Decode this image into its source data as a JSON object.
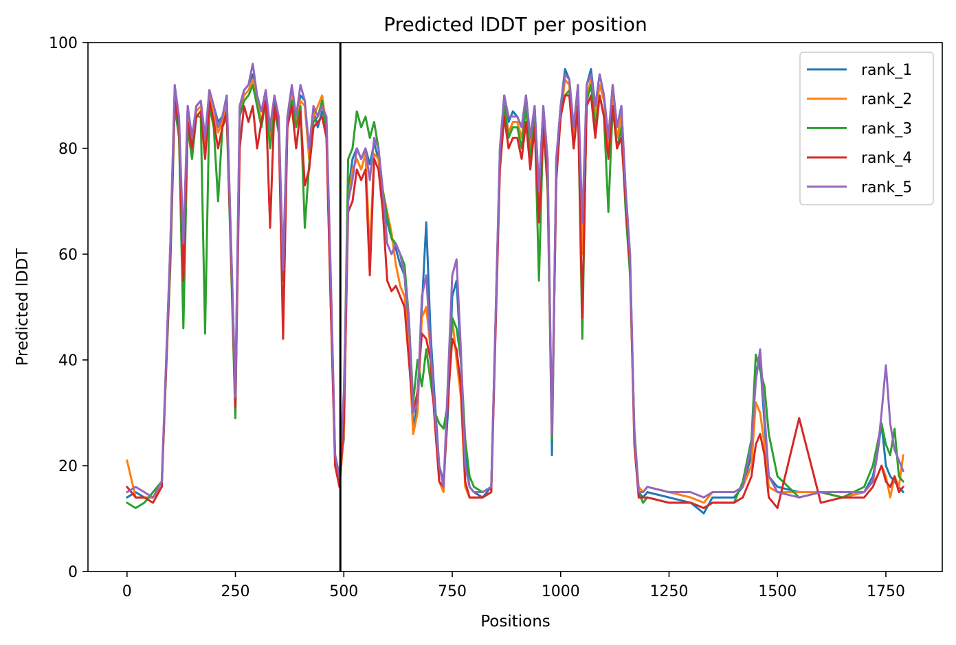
{
  "chart_data": {
    "type": "line",
    "title": "Predicted lDDT per position",
    "xlabel": "Positions",
    "ylabel": "Predicted lDDT",
    "xlim": [
      -90,
      1880
    ],
    "ylim": [
      0,
      100
    ],
    "xticks": [
      0,
      250,
      500,
      750,
      1000,
      1250,
      1500,
      1750
    ],
    "yticks": [
      0,
      20,
      40,
      60,
      80,
      100
    ],
    "xtick_labels": [
      "0",
      "250",
      "500",
      "750",
      "1000",
      "1250",
      "1500",
      "1750"
    ],
    "ytick_labels": [
      "0",
      "20",
      "40",
      "60",
      "80",
      "100"
    ],
    "vertical_line_x": 492,
    "legend_position": "top-right",
    "grid": false,
    "x": [
      0,
      20,
      40,
      60,
      80,
      100,
      110,
      120,
      130,
      140,
      150,
      160,
      170,
      180,
      190,
      200,
      210,
      220,
      230,
      240,
      250,
      260,
      270,
      280,
      290,
      300,
      310,
      320,
      330,
      340,
      350,
      360,
      370,
      380,
      390,
      400,
      410,
      420,
      430,
      440,
      450,
      460,
      470,
      480,
      490,
      500,
      510,
      520,
      530,
      540,
      550,
      560,
      570,
      580,
      590,
      600,
      610,
      620,
      630,
      640,
      650,
      660,
      670,
      680,
      690,
      700,
      710,
      720,
      730,
      740,
      750,
      760,
      770,
      780,
      790,
      800,
      820,
      840,
      860,
      870,
      880,
      890,
      900,
      910,
      920,
      930,
      940,
      950,
      960,
      970,
      980,
      990,
      1000,
      1010,
      1020,
      1030,
      1040,
      1050,
      1060,
      1070,
      1080,
      1090,
      1100,
      1110,
      1120,
      1130,
      1140,
      1150,
      1160,
      1170,
      1180,
      1190,
      1200,
      1250,
      1300,
      1330,
      1350,
      1400,
      1420,
      1440,
      1450,
      1460,
      1470,
      1480,
      1500,
      1550,
      1600,
      1650,
      1700,
      1720,
      1730,
      1740,
      1750,
      1760,
      1770,
      1780,
      1790
    ],
    "series": [
      {
        "name": "rank_1",
        "color": "#1f77b4",
        "values": [
          14,
          15,
          14,
          14,
          16,
          62,
          91,
          85,
          60,
          88,
          82,
          88,
          89,
          82,
          91,
          88,
          85,
          86,
          90,
          62,
          34,
          88,
          91,
          92,
          94,
          90,
          87,
          91,
          83,
          89,
          85,
          58,
          86,
          91,
          86,
          90,
          89,
          79,
          87,
          84,
          87,
          85,
          55,
          22,
          18,
          25,
          72,
          78,
          80,
          78,
          80,
          77,
          81,
          78,
          70,
          66,
          63,
          61,
          58,
          56,
          45,
          27,
          32,
          50,
          66,
          45,
          32,
          20,
          17,
          30,
          52,
          55,
          40,
          22,
          16,
          15,
          14,
          16,
          80,
          90,
          85,
          87,
          86,
          84,
          90,
          82,
          88,
          72,
          88,
          78,
          22,
          78,
          88,
          95,
          93,
          84,
          92,
          62,
          92,
          95,
          88,
          94,
          90,
          82,
          92,
          84,
          88,
          72,
          60,
          26,
          15,
          14,
          15,
          14,
          13,
          11,
          14,
          14,
          16,
          22,
          38,
          40,
          28,
          18,
          16,
          15,
          15,
          14,
          15,
          18,
          22,
          28,
          20,
          18,
          17,
          16,
          15
        ]
      },
      {
        "name": "rank_2",
        "color": "#ff7f0e",
        "values": [
          21,
          14,
          14,
          14,
          16,
          60,
          90,
          84,
          58,
          86,
          80,
          87,
          88,
          80,
          90,
          86,
          83,
          85,
          88,
          60,
          32,
          87,
          90,
          91,
          93,
          89,
          85,
          90,
          81,
          88,
          84,
          56,
          85,
          90,
          85,
          89,
          88,
          78,
          86,
          88,
          90,
          84,
          52,
          20,
          16,
          26,
          70,
          76,
          78,
          76,
          79,
          60,
          79,
          78,
          72,
          68,
          64,
          58,
          54,
          52,
          42,
          26,
          30,
          48,
          50,
          42,
          28,
          17,
          15,
          35,
          48,
          40,
          33,
          16,
          14,
          14,
          14,
          15,
          78,
          88,
          83,
          85,
          85,
          82,
          88,
          80,
          87,
          70,
          86,
          76,
          25,
          76,
          86,
          93,
          92,
          82,
          90,
          60,
          90,
          93,
          86,
          92,
          89,
          80,
          90,
          82,
          86,
          70,
          58,
          25,
          16,
          15,
          16,
          15,
          14,
          13,
          15,
          15,
          16,
          20,
          32,
          30,
          24,
          16,
          15,
          15,
          15,
          14,
          15,
          17,
          18,
          20,
          18,
          14,
          18,
          16,
          22
        ]
      },
      {
        "name": "rank_3",
        "color": "#2ca02c",
        "values": [
          13,
          12,
          13,
          15,
          17,
          58,
          88,
          82,
          46,
          84,
          78,
          86,
          86,
          45,
          88,
          84,
          70,
          84,
          86,
          58,
          29,
          86,
          89,
          90,
          92,
          88,
          84,
          89,
          80,
          87,
          83,
          55,
          84,
          89,
          84,
          88,
          65,
          77,
          85,
          86,
          89,
          83,
          50,
          22,
          18,
          30,
          78,
          80,
          87,
          84,
          86,
          82,
          85,
          80,
          72,
          67,
          63,
          62,
          60,
          58,
          48,
          32,
          40,
          35,
          42,
          36,
          30,
          28,
          27,
          32,
          48,
          46,
          40,
          25,
          18,
          16,
          15,
          16,
          78,
          88,
          82,
          84,
          84,
          80,
          88,
          78,
          86,
          55,
          85,
          72,
          25,
          74,
          88,
          90,
          91,
          80,
          88,
          44,
          89,
          92,
          84,
          90,
          86,
          68,
          88,
          80,
          84,
          68,
          56,
          27,
          15,
          13,
          14,
          13,
          13,
          12,
          13,
          13,
          17,
          25,
          41,
          38,
          35,
          26,
          18,
          14,
          15,
          14,
          16,
          20,
          24,
          28,
          24,
          22,
          27,
          18,
          17
        ]
      },
      {
        "name": "rank_4",
        "color": "#d62728",
        "values": [
          16,
          14,
          14,
          13,
          16,
          60,
          89,
          84,
          55,
          85,
          80,
          86,
          87,
          78,
          89,
          85,
          80,
          84,
          87,
          60,
          31,
          80,
          88,
          85,
          88,
          80,
          85,
          89,
          65,
          88,
          84,
          44,
          84,
          88,
          80,
          87,
          73,
          76,
          84,
          85,
          86,
          82,
          50,
          20,
          16,
          28,
          68,
          70,
          76,
          74,
          76,
          56,
          78,
          76,
          68,
          55,
          53,
          54,
          52,
          50,
          40,
          30,
          34,
          45,
          44,
          40,
          28,
          17,
          16,
          32,
          44,
          42,
          35,
          17,
          14,
          14,
          14,
          15,
          76,
          86,
          80,
          82,
          82,
          78,
          85,
          76,
          84,
          66,
          84,
          74,
          26,
          74,
          86,
          90,
          90,
          80,
          88,
          48,
          88,
          90,
          82,
          90,
          86,
          78,
          88,
          80,
          82,
          70,
          58,
          24,
          14,
          14,
          14,
          13,
          13,
          12,
          13,
          13,
          14,
          18,
          24,
          26,
          22,
          14,
          12,
          29,
          13,
          14,
          14,
          16,
          18,
          20,
          17,
          16,
          18,
          15,
          16
        ]
      },
      {
        "name": "rank_5",
        "color": "#9467bd",
        "values": [
          15,
          16,
          15,
          14,
          17,
          62,
          92,
          86,
          62,
          88,
          82,
          88,
          89,
          82,
          91,
          88,
          84,
          86,
          90,
          62,
          33,
          88,
          91,
          92,
          96,
          90,
          87,
          91,
          84,
          90,
          86,
          57,
          86,
          92,
          86,
          92,
          89,
          80,
          88,
          86,
          88,
          86,
          56,
          22,
          18,
          34,
          70,
          74,
          80,
          78,
          80,
          74,
          82,
          80,
          72,
          62,
          60,
          62,
          60,
          56,
          48,
          30,
          32,
          52,
          56,
          42,
          30,
          20,
          16,
          36,
          56,
          59,
          42,
          20,
          16,
          15,
          15,
          16,
          80,
          90,
          86,
          86,
          86,
          84,
          90,
          82,
          88,
          72,
          88,
          78,
          26,
          78,
          88,
          94,
          93,
          84,
          92,
          66,
          92,
          94,
          88,
          94,
          90,
          82,
          92,
          84,
          88,
          72,
          60,
          26,
          15,
          15,
          16,
          15,
          15,
          14,
          15,
          15,
          16,
          24,
          36,
          42,
          30,
          18,
          15,
          14,
          15,
          15,
          15,
          17,
          22,
          30,
          39,
          28,
          23,
          21,
          19
        ]
      }
    ]
  }
}
